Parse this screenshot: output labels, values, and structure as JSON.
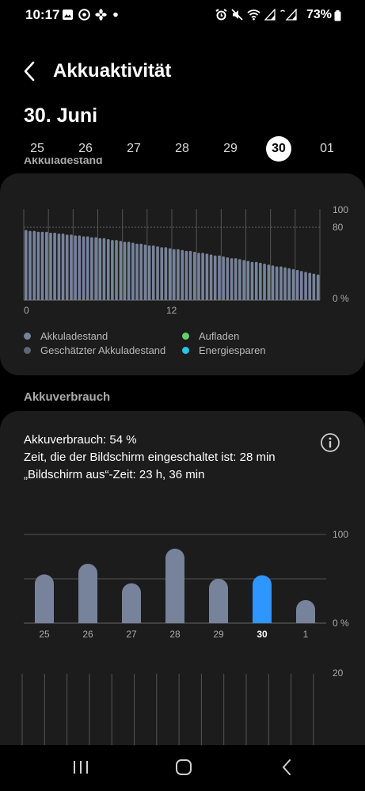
{
  "status_bar": {
    "time": "10:17",
    "battery_percent": "73%",
    "left_icons": [
      "gallery-icon",
      "vpn-icon",
      "fan-icon",
      "dot-icon"
    ],
    "right_icons": [
      "alarm-icon",
      "mute-icon",
      "wifi-icon",
      "signal-icon",
      "signal-2-icon"
    ]
  },
  "header": {
    "title": "Akkuaktivität"
  },
  "date_heading": "30. Juni",
  "days": [
    {
      "label": "25",
      "selected": false
    },
    {
      "label": "26",
      "selected": false
    },
    {
      "label": "27",
      "selected": false
    },
    {
      "label": "28",
      "selected": false
    },
    {
      "label": "29",
      "selected": false
    },
    {
      "label": "30",
      "selected": true
    },
    {
      "label": "01",
      "selected": false
    }
  ],
  "level_card": {
    "peek_title": "Akkuladestand",
    "legend": {
      "level": "Akkuladestand",
      "estimated": "Geschätzter Akkuladestand",
      "charging": "Aufladen",
      "power_saving": "Energiesparen"
    }
  },
  "usage_section_title": "Akkuverbrauch",
  "usage_card": {
    "usage_line": "Akkuverbrauch: 54 %",
    "screen_on_line": "Zeit, die der Bildschirm eingeschaltet ist: 28 min",
    "screen_off_line": "„Bildschirm aus“-Zeit: 23 h, 36 min"
  },
  "colors": {
    "bar": "#76839a",
    "selected_bar": "#2f95ff",
    "estimated": "#5d6677",
    "charging": "#5fd36a",
    "power_saving": "#26c6e6",
    "card": "#1c1c1c"
  },
  "chart_data": [
    {
      "type": "bar",
      "x": [
        0,
        0.33,
        0.67,
        1,
        1.33,
        1.67,
        2,
        2.33,
        2.67,
        3,
        3.33,
        3.67,
        4,
        4.33,
        4.67,
        5,
        5.33,
        5.67,
        6,
        6.33,
        6.67,
        7,
        7.33,
        7.67,
        8,
        8.33,
        8.67,
        9,
        9.33,
        9.67,
        10,
        10.33,
        10.67,
        11,
        11.33,
        11.67,
        12,
        12.33,
        12.67,
        13,
        13.33,
        13.67,
        14,
        14.33,
        14.67,
        15,
        15.33,
        15.67,
        16,
        16.33,
        16.67,
        17,
        17.33,
        17.67,
        18,
        18.33,
        18.67,
        19,
        19.33,
        19.67,
        20,
        20.33,
        20.67,
        21,
        21.33,
        21.67,
        22,
        22.33,
        22.67,
        23,
        23.33,
        23.67
      ],
      "values": [
        77,
        76,
        76,
        75,
        75,
        75,
        74,
        74,
        73,
        73,
        72,
        72,
        71,
        71,
        70,
        70,
        69,
        69,
        68,
        68,
        67,
        66,
        66,
        65,
        64,
        64,
        63,
        62,
        62,
        61,
        60,
        60,
        59,
        58,
        58,
        57,
        56,
        56,
        55,
        54,
        54,
        53,
        52,
        52,
        51,
        50,
        49,
        49,
        48,
        47,
        46,
        46,
        45,
        44,
        43,
        42,
        42,
        41,
        40,
        39,
        38,
        37,
        37,
        36,
        35,
        34,
        33,
        32,
        31,
        30,
        29,
        28
      ],
      "x_ticks": [
        "0",
        "12"
      ],
      "y_ticks": [
        "100",
        "80",
        "0 %"
      ],
      "ylim": [
        0,
        100
      ]
    },
    {
      "type": "bar",
      "categories": [
        "25",
        "26",
        "27",
        "28",
        "29",
        "30",
        "1"
      ],
      "values": [
        55,
        67,
        45,
        84,
        50,
        54,
        26
      ],
      "selected_index": 5,
      "y_ticks": [
        "100",
        "0 %"
      ],
      "ylim": [
        0,
        100
      ]
    },
    {
      "type": "bar",
      "y_ticks": [
        "20"
      ]
    }
  ]
}
